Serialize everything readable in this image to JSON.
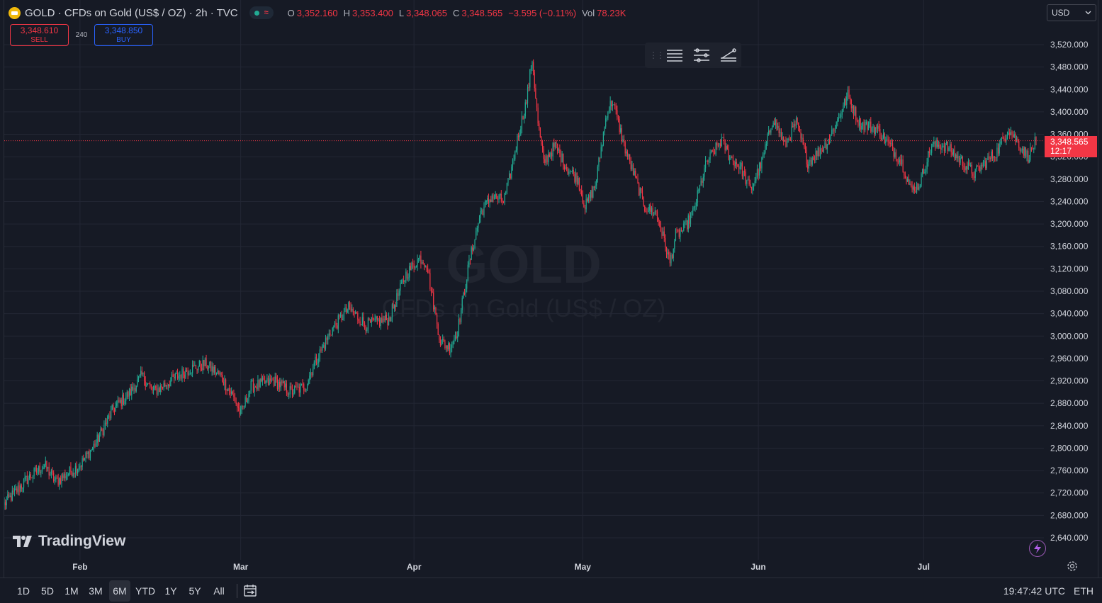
{
  "header": {
    "title": "GOLD · CFDs on Gold (US$ / OZ) · 2h · TVC",
    "ohlc": [
      {
        "label": "O",
        "value": "3,352.160"
      },
      {
        "label": "H",
        "value": "3,353.400"
      },
      {
        "label": "L",
        "value": "3,348.065"
      },
      {
        "label": "C",
        "value": "3,348.565"
      }
    ],
    "change": "−3.595 (−0.11%)",
    "volume_label": "Vol",
    "volume_value": "78.23K"
  },
  "trade": {
    "sell_price": "3,348.610",
    "sell_label": "SELL",
    "spread": "240",
    "buy_price": "3,348.850",
    "buy_label": "BUY"
  },
  "currency": {
    "selected": "USD"
  },
  "watermark": {
    "symbol": "GOLD",
    "description": "CFDs on Gold (US$ / OZ)"
  },
  "brand": {
    "name": "TradingView"
  },
  "last_price": {
    "value": "3,348.565",
    "countdown": "12:17"
  },
  "bottom_bar": {
    "ranges": [
      "1D",
      "5D",
      "1M",
      "3M",
      "6M",
      "YTD",
      "1Y",
      "5Y",
      "All"
    ],
    "active_range": "6M",
    "clock": "19:47:42 UTC",
    "session": "ETH"
  },
  "colors": {
    "up": "#22ab94",
    "down": "#f23645",
    "background": "#161a25",
    "grid": "#232734",
    "axis_text": "#d1d4dc"
  },
  "icons": [
    "gold-coin-icon",
    "drag-handle-icon",
    "horizontal-lines-icon",
    "parallel-channel-icon",
    "trend-angle-icon",
    "calendar-range-icon",
    "lightning-icon",
    "gear-icon",
    "chevron-down-icon"
  ],
  "chart_data": {
    "type": "candlestick",
    "interval": "2h",
    "y_axis_side": "right",
    "y_range": [
      2620,
      3540
    ],
    "y_ticks": [
      "3,520.000",
      "3,480.000",
      "3,440.000",
      "3,400.000",
      "3,360.000",
      "3,320.000",
      "3,280.000",
      "3,240.000",
      "3,200.000",
      "3,160.000",
      "3,120.000",
      "3,080.000",
      "3,040.000",
      "3,000.000",
      "2,960.000",
      "2,920.000",
      "2,880.000",
      "2,840.000",
      "2,800.000",
      "2,760.000",
      "2,720.000",
      "2,680.000",
      "2,640.000"
    ],
    "x_tick_labels": [
      "Feb",
      "Mar",
      "Apr",
      "May",
      "Jun",
      "Jul"
    ],
    "x_ticks": [
      {
        "label": "Feb",
        "index": 66
      },
      {
        "label": "Mar",
        "index": 206
      },
      {
        "label": "Apr",
        "index": 357
      },
      {
        "label": "May",
        "index": 504
      },
      {
        "label": "Jun",
        "index": 657
      },
      {
        "label": "Jul",
        "index": 801
      }
    ],
    "candle_count": 900,
    "last_price": 3348.565,
    "close_path": [
      [
        0,
        2700
      ],
      [
        20,
        2745
      ],
      [
        35,
        2770
      ],
      [
        45,
        2740
      ],
      [
        66,
        2770
      ],
      [
        80,
        2810
      ],
      [
        95,
        2870
      ],
      [
        110,
        2900
      ],
      [
        120,
        2930
      ],
      [
        130,
        2900
      ],
      [
        145,
        2920
      ],
      [
        160,
        2940
      ],
      [
        175,
        2950
      ],
      [
        188,
        2930
      ],
      [
        200,
        2890
      ],
      [
        206,
        2860
      ],
      [
        215,
        2910
      ],
      [
        235,
        2920
      ],
      [
        250,
        2900
      ],
      [
        262,
        2910
      ],
      [
        270,
        2950
      ],
      [
        285,
        3010
      ],
      [
        300,
        3050
      ],
      [
        315,
        3020
      ],
      [
        335,
        3030
      ],
      [
        350,
        3110
      ],
      [
        362,
        3140
      ],
      [
        368,
        3130
      ],
      [
        372,
        3080
      ],
      [
        380,
        2990
      ],
      [
        388,
        2980
      ],
      [
        395,
        3010
      ],
      [
        405,
        3130
      ],
      [
        415,
        3220
      ],
      [
        425,
        3250
      ],
      [
        435,
        3240
      ],
      [
        440,
        3280
      ],
      [
        448,
        3360
      ],
      [
        455,
        3420
      ],
      [
        460,
        3495
      ],
      [
        465,
        3380
      ],
      [
        470,
        3310
      ],
      [
        480,
        3340
      ],
      [
        490,
        3300
      ],
      [
        500,
        3280
      ],
      [
        506,
        3230
      ],
      [
        515,
        3270
      ],
      [
        525,
        3400
      ],
      [
        530,
        3420
      ],
      [
        540,
        3340
      ],
      [
        550,
        3280
      ],
      [
        558,
        3230
      ],
      [
        568,
        3220
      ],
      [
        575,
        3170
      ],
      [
        580,
        3130
      ],
      [
        585,
        3180
      ],
      [
        592,
        3190
      ],
      [
        600,
        3220
      ],
      [
        612,
        3310
      ],
      [
        625,
        3350
      ],
      [
        632,
        3320
      ],
      [
        642,
        3300
      ],
      [
        650,
        3260
      ],
      [
        660,
        3310
      ],
      [
        670,
        3390
      ],
      [
        680,
        3340
      ],
      [
        690,
        3380
      ],
      [
        700,
        3310
      ],
      [
        715,
        3340
      ],
      [
        725,
        3380
      ],
      [
        735,
        3430
      ],
      [
        745,
        3380
      ],
      [
        760,
        3370
      ],
      [
        775,
        3330
      ],
      [
        782,
        3310
      ],
      [
        790,
        3260
      ],
      [
        797,
        3270
      ],
      [
        808,
        3340
      ],
      [
        820,
        3340
      ],
      [
        835,
        3310
      ],
      [
        845,
        3290
      ],
      [
        855,
        3310
      ],
      [
        865,
        3330
      ],
      [
        875,
        3370
      ],
      [
        885,
        3340
      ],
      [
        892,
        3320
      ],
      [
        899,
        3348.565
      ]
    ]
  }
}
